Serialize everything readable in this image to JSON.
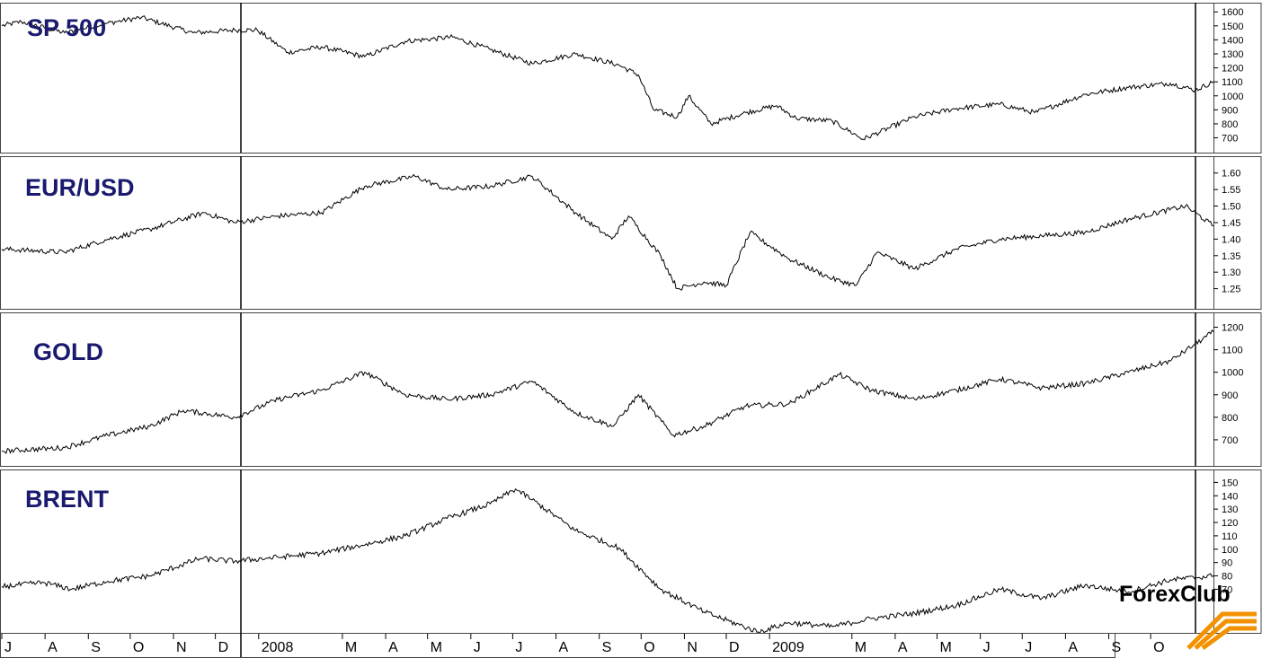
{
  "brand": {
    "logo_text": "ForexClub",
    "accent_color": "#f39200"
  },
  "x_axis": {
    "labels": [
      "J",
      "A",
      "S",
      "O",
      "N",
      "D",
      "2008",
      "M",
      "A",
      "M",
      "J",
      "J",
      "A",
      "S",
      "O",
      "N",
      "D",
      "2009",
      "M",
      "A",
      "M",
      "J",
      "J",
      "A",
      "S",
      "O"
    ]
  },
  "chart_data": [
    {
      "type": "line",
      "title": "SP 500",
      "x_range": [
        "2007-07-01",
        "2009-11-15"
      ],
      "yticks": [
        700,
        800,
        900,
        1000,
        1100,
        1200,
        1300,
        1400,
        1500,
        1600
      ],
      "ylim": [
        620,
        1640
      ],
      "series": [
        {
          "x": [
            "2007-07-01",
            "2007-07-15",
            "2007-08-15",
            "2007-09-15",
            "2007-10-09",
            "2007-11-15",
            "2007-12-15",
            "2007-12-31",
            "2008-01-22",
            "2008-02-15",
            "2008-03-17",
            "2008-04-15",
            "2008-05-19",
            "2008-06-15",
            "2008-07-15",
            "2008-08-15",
            "2008-09-15",
            "2008-09-29",
            "2008-10-10",
            "2008-10-27",
            "2008-11-04",
            "2008-11-20",
            "2008-12-15",
            "2009-01-06",
            "2009-01-20",
            "2009-02-15",
            "2009-03-09",
            "2009-04-15",
            "2009-05-15",
            "2009-06-15",
            "2009-07-10",
            "2009-08-15",
            "2009-09-15",
            "2009-10-15",
            "2009-11-02",
            "2009-11-15"
          ],
          "values": [
            1500,
            1530,
            1450,
            1520,
            1560,
            1450,
            1470,
            1470,
            1310,
            1350,
            1280,
            1390,
            1420,
            1330,
            1230,
            1300,
            1220,
            1150,
            900,
            850,
            1000,
            800,
            880,
            930,
            840,
            820,
            690,
            850,
            910,
            940,
            880,
            1010,
            1060,
            1090,
            1040,
            1100
          ]
        }
      ]
    },
    {
      "type": "line",
      "title": "EUR/USD",
      "x_range": [
        "2007-07-01",
        "2009-11-15"
      ],
      "yticks": [
        1.25,
        1.3,
        1.35,
        1.4,
        1.45,
        1.5,
        1.55,
        1.6
      ],
      "ylim": [
        1.2,
        1.64
      ],
      "series": [
        {
          "x": [
            "2007-07-01",
            "2007-08-15",
            "2007-09-15",
            "2007-10-15",
            "2007-11-23",
            "2007-12-15",
            "2008-01-15",
            "2008-02-15",
            "2008-03-17",
            "2008-04-22",
            "2008-05-15",
            "2008-06-15",
            "2008-07-15",
            "2008-08-15",
            "2008-09-10",
            "2008-09-22",
            "2008-10-15",
            "2008-10-27",
            "2008-11-15",
            "2008-12-01",
            "2008-12-18",
            "2009-01-15",
            "2009-02-15",
            "2009-03-04",
            "2009-03-19",
            "2009-04-15",
            "2009-05-15",
            "2009-06-15",
            "2009-07-15",
            "2009-08-15",
            "2009-09-15",
            "2009-10-26",
            "2009-11-15"
          ],
          "values": [
            1.37,
            1.36,
            1.4,
            1.43,
            1.48,
            1.45,
            1.47,
            1.48,
            1.56,
            1.59,
            1.55,
            1.56,
            1.59,
            1.48,
            1.4,
            1.47,
            1.35,
            1.25,
            1.27,
            1.26,
            1.42,
            1.34,
            1.28,
            1.26,
            1.36,
            1.31,
            1.37,
            1.4,
            1.41,
            1.42,
            1.46,
            1.5,
            1.44
          ]
        }
      ]
    },
    {
      "type": "line",
      "title": "GOLD",
      "x_range": [
        "2007-07-01",
        "2009-11-15"
      ],
      "yticks": [
        700,
        800,
        900,
        1000,
        1100,
        1200
      ],
      "ylim": [
        600,
        1250
      ],
      "series": [
        {
          "x": [
            "2007-07-01",
            "2007-08-15",
            "2007-09-15",
            "2007-10-15",
            "2007-11-08",
            "2007-12-15",
            "2008-01-15",
            "2008-02-15",
            "2008-03-17",
            "2008-04-15",
            "2008-05-15",
            "2008-06-15",
            "2008-07-15",
            "2008-08-15",
            "2008-09-11",
            "2008-09-29",
            "2008-10-24",
            "2008-11-15",
            "2008-12-15",
            "2009-01-15",
            "2009-02-20",
            "2009-03-15",
            "2009-04-15",
            "2009-05-15",
            "2009-06-15",
            "2009-07-15",
            "2009-08-15",
            "2009-09-15",
            "2009-10-15",
            "2009-11-15"
          ],
          "values": [
            650,
            665,
            720,
            760,
            830,
            800,
            880,
            920,
            1000,
            900,
            880,
            900,
            960,
            820,
            760,
            900,
            720,
            760,
            850,
            860,
            990,
            920,
            880,
            920,
            970,
            930,
            950,
            1000,
            1050,
            1180
          ]
        }
      ]
    },
    {
      "type": "line",
      "title": "BRENT",
      "x_range": [
        "2007-07-01",
        "2009-11-15"
      ],
      "yticks": [
        70,
        80,
        90,
        100,
        110,
        120,
        130,
        140,
        150
      ],
      "ylim": [
        40,
        157
      ],
      "series": [
        {
          "x": [
            "2007-07-01",
            "2007-07-31",
            "2007-08-20",
            "2007-09-15",
            "2007-10-15",
            "2007-11-20",
            "2007-12-15",
            "2008-01-15",
            "2008-02-15",
            "2008-03-15",
            "2008-04-15",
            "2008-05-15",
            "2008-06-15",
            "2008-07-03",
            "2008-07-15",
            "2008-08-15",
            "2008-09-15",
            "2008-10-15",
            "2008-11-15",
            "2008-12-24",
            "2009-01-15",
            "2009-02-15",
            "2009-03-15",
            "2009-04-15",
            "2009-05-15",
            "2009-06-15",
            "2009-07-15",
            "2009-08-15",
            "2009-09-15",
            "2009-10-15",
            "2009-11-15"
          ],
          "values": [
            72,
            75,
            70,
            76,
            80,
            93,
            91,
            94,
            97,
            103,
            110,
            123,
            134,
            145,
            137,
            114,
            101,
            70,
            53,
            38,
            45,
            42,
            48,
            52,
            58,
            70,
            63,
            73,
            68,
            77,
            80
          ]
        }
      ]
    }
  ]
}
